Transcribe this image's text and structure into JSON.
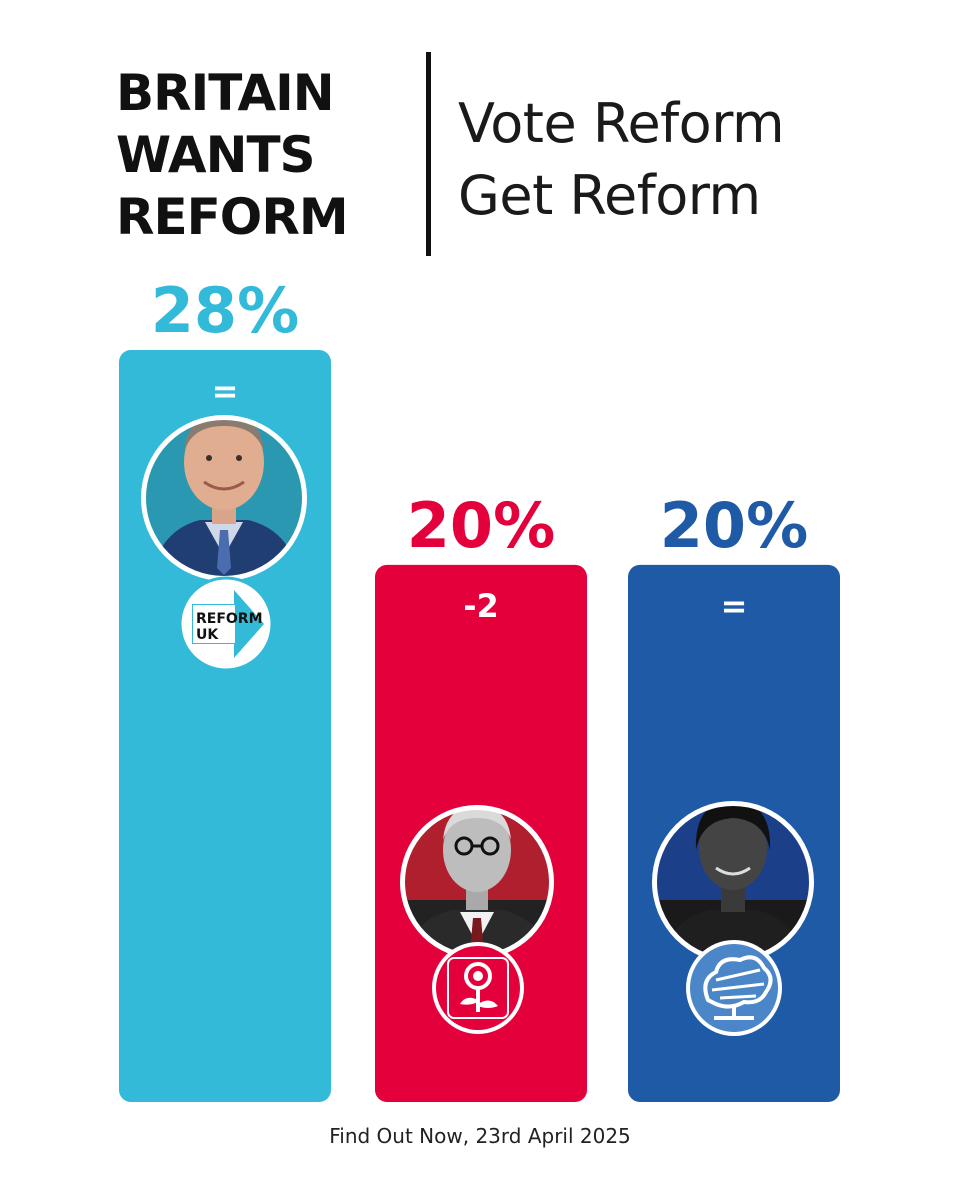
{
  "header": {
    "headline_lines": [
      "BRITAIN",
      "WANTS",
      "REFORM"
    ],
    "tagline_lines": [
      "Vote Reform",
      "Get Reform"
    ]
  },
  "chart_data": {
    "type": "bar",
    "categories": [
      "Reform UK",
      "Labour",
      "Conservative"
    ],
    "values": [
      28,
      20,
      20
    ],
    "value_labels": [
      "28%",
      "20%",
      "20%"
    ],
    "change_labels": [
      "=",
      "-2",
      "="
    ],
    "colors": [
      "#33bad9",
      "#e4003b",
      "#1f5aa6"
    ],
    "label_colors": [
      "#33bad9",
      "#e4003b",
      "#1f5aa6"
    ],
    "icons": [
      "farage-portrait-reform-logo-icon",
      "starmer-portrait-labour-rose-logo-icon",
      "badenoch-portrait-conservative-tree-logo-icon"
    ],
    "ylim": [
      0,
      28
    ],
    "grid": false
  },
  "source": "Find Out Now, 23rd April 2025"
}
